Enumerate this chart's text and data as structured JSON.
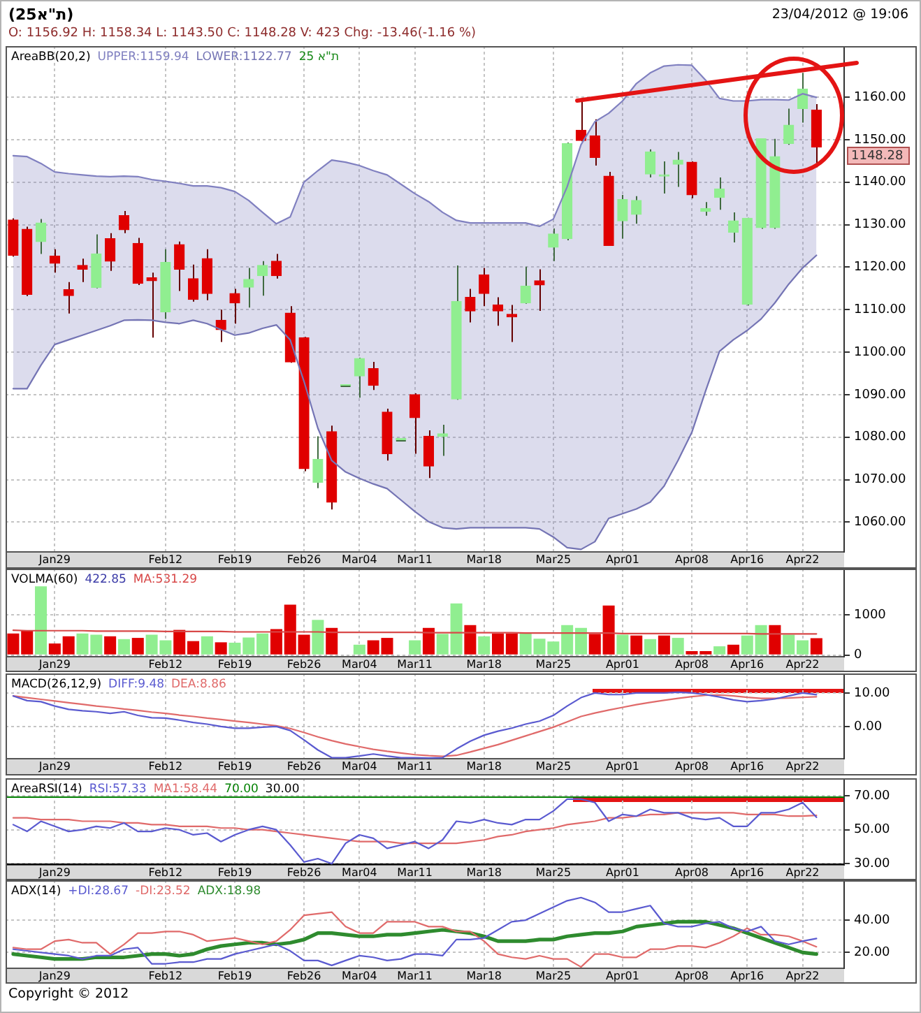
{
  "chart_data": [
    {
      "type": "candlestick",
      "title": "(ת\"א25)",
      "subtitle": "O: 1156.92 H: 1158.34 L: 1143.50 C: 1148.28 V: 423 Chg: -13.46(-1.16 %)",
      "legend_title": "AreaBB(20,2)",
      "legend": "top left",
      "categories": [
        null,
        null,
        null,
        "Jan29",
        null,
        null,
        null,
        null,
        null,
        null,
        null,
        "Feb12",
        null,
        null,
        null,
        null,
        "Feb19",
        null,
        null,
        null,
        null,
        "Feb26",
        null,
        null,
        null,
        "Mar04",
        null,
        null,
        null,
        "Mar11",
        null,
        null,
        null,
        null,
        "Mar18",
        null,
        null,
        null,
        null,
        "Mar25",
        null,
        null,
        null,
        null,
        "Apr01",
        null,
        null,
        null,
        null,
        "Apr08",
        null,
        null,
        null,
        "Apr16",
        null,
        null,
        null,
        "Apr22",
        null
      ],
      "series": [
        {
          "name": "UPPER:1159.94",
          "type": "area",
          "color": "#8080c0",
          "values": [
            1146.2,
            1146.0,
            1144.4,
            1142.4,
            1142.0,
            1141.7,
            1141.4,
            1141.3,
            1141.4,
            1141.3,
            1140.6,
            1140.2,
            1139.7,
            1139.1,
            1139.1,
            1138.7,
            1137.8,
            1135.7,
            1132.9,
            1130.2,
            1131.8,
            1140.0,
            1142.7,
            1145.2,
            1144.7,
            1143.9,
            1142.7,
            1141.7,
            1139.5,
            1137.3,
            1135.4,
            1132.9,
            1131.0,
            1130.4,
            1130.4,
            1130.4,
            1130.4,
            1130.4,
            1129.6,
            1131.3,
            1138.9,
            1148.8,
            1154.2,
            1156.2,
            1159.1,
            1163.2,
            1165.7,
            1167.3,
            1167.6,
            1167.5,
            1164.0,
            1159.7,
            1159.1,
            1159.1,
            1159.4,
            1159.4,
            1159.3,
            1160.8,
            1159.94
          ]
        },
        {
          "name": "LOWER:1122.77",
          "type": "line",
          "color": "#7474b4",
          "values": [
            1091.4,
            1091.4,
            1096.9,
            1101.8,
            1102.9,
            1104.0,
            1105.1,
            1106.2,
            1107.5,
            1107.6,
            1107.5,
            1107.0,
            1106.7,
            1107.5,
            1106.7,
            1105.3,
            1104.0,
            1104.5,
            1105.6,
            1106.4,
            1102.9,
            1093.1,
            1082.1,
            1074.5,
            1071.8,
            1070.3,
            1069.0,
            1067.9,
            1065.2,
            1062.5,
            1060.1,
            1058.7,
            1058.4,
            1058.7,
            1058.7,
            1058.7,
            1058.7,
            1058.7,
            1058.4,
            1056.5,
            1054.0,
            1053.6,
            1055.4,
            1060.9,
            1062.0,
            1063.1,
            1064.7,
            1068.5,
            1074.5,
            1081.1,
            1090.9,
            1100.2,
            1102.9,
            1105.1,
            1107.8,
            1111.6,
            1116.0,
            1119.8,
            1122.77
          ]
        },
        {
          "colors": [
            "#e00000",
            "#e00000",
            "#90ee90",
            "#e00000",
            "#e00000",
            "#e00000",
            "#90ee90",
            "#e00000",
            "#e00000",
            "#e00000",
            "#e00000",
            "#90ee90",
            "#e00000",
            "#e00000",
            "#e00000",
            "#e00000",
            "#e00000",
            "#90ee90",
            "#90ee90",
            "#e00000",
            "#e00000",
            "#e00000",
            "#90ee90",
            "#e00000",
            "#90ee90",
            "#90ee90",
            "#e00000",
            "#e00000",
            "#90ee90",
            "#e00000",
            "#e00000",
            "#90ee90",
            "#90ee90",
            "#e00000",
            "#e00000",
            "#e00000",
            "#e00000",
            "#90ee90",
            "#e00000",
            "#90ee90",
            "#90ee90",
            "#e00000",
            "#e00000",
            "#e00000",
            "#90ee90",
            "#90ee90",
            "#90ee90",
            "#90ee90",
            "#90ee90",
            "#e00000",
            "#90ee90",
            "#90ee90",
            "#90ee90",
            "#90ee90",
            "#90ee90",
            "#90ee90",
            "#90ee90",
            "#90ee90",
            "#e00000"
          ],
          "ohlc": [
            [
              1131.1,
              1131.5,
              1122.5,
              1122.8
            ],
            [
              1128.9,
              1129.5,
              1113.2,
              1113.6
            ],
            [
              1126.0,
              1131.3,
              1123.1,
              1130.4
            ],
            [
              1122.6,
              1124.2,
              1118.7,
              1120.9
            ],
            [
              1114.7,
              1116.5,
              1109.1,
              1113.3
            ],
            [
              1120.4,
              1122.0,
              1116.5,
              1119.5
            ],
            [
              1115.2,
              1127.7,
              1115.0,
              1123.1
            ],
            [
              1126.7,
              1128.0,
              1119.1,
              1121.4
            ],
            [
              1132.1,
              1133.2,
              1128.0,
              1128.8
            ],
            [
              1125.6,
              1126.9,
              1115.8,
              1116.2
            ],
            [
              1117.5,
              1118.7,
              1103.4,
              1116.8
            ],
            [
              1109.5,
              1124.2,
              1107.8,
              1121.1
            ],
            [
              1125.3,
              1126.0,
              1114.4,
              1119.5
            ],
            [
              1117.3,
              1120.6,
              1111.9,
              1112.4
            ],
            [
              1122.0,
              1124.2,
              1112.2,
              1113.8
            ],
            [
              1107.5,
              1110.0,
              1102.4,
              1105.3
            ],
            [
              1113.8,
              1114.9,
              1106.7,
              1111.6
            ],
            [
              1115.3,
              1119.8,
              1110.5,
              1117.1
            ],
            [
              1118.0,
              1121.4,
              1113.3,
              1120.4
            ],
            [
              1121.4,
              1123.1,
              1117.3,
              1118.0
            ],
            [
              1109.2,
              1110.8,
              1097.5,
              1097.7
            ],
            [
              1103.4,
              1103.6,
              1072.0,
              1072.6
            ],
            [
              1069.4,
              1080.2,
              1068.0,
              1074.8
            ],
            [
              1081.3,
              1082.7,
              1063.0,
              1064.7
            ],
            [
              1092.0,
              1092.0,
              1092.0,
              1092.0
            ],
            [
              1094.4,
              1098.7,
              1089.3,
              1098.5
            ],
            [
              1096.1,
              1097.7,
              1091.1,
              1092.2
            ],
            [
              1085.9,
              1086.7,
              1074.5,
              1076.1
            ],
            [
              1079.4,
              1079.4,
              1079.4,
              1079.4
            ],
            [
              1090.0,
              1090.3,
              1076.1,
              1084.6
            ],
            [
              1080.2,
              1081.6,
              1070.4,
              1073.2
            ],
            [
              1080.2,
              1082.9,
              1075.6,
              1080.8
            ],
            [
              1089.0,
              1120.4,
              1088.8,
              1111.9
            ],
            [
              1112.9,
              1114.9,
              1107.0,
              1109.7
            ],
            [
              1118.2,
              1119.8,
              1110.8,
              1113.8
            ],
            [
              1111.1,
              1112.9,
              1106.2,
              1109.7
            ],
            [
              1108.9,
              1111.1,
              1102.4,
              1108.3
            ],
            [
              1111.6,
              1120.1,
              1111.4,
              1115.5
            ],
            [
              1116.8,
              1119.5,
              1109.7,
              1115.8
            ],
            [
              1124.7,
              1129.1,
              1121.4,
              1127.8
            ],
            [
              1126.7,
              1149.3,
              1126.3,
              1149.1
            ],
            [
              1152.2,
              1159.1,
              1149.6,
              1149.8
            ],
            [
              1150.9,
              1154.8,
              1143.9,
              1145.8
            ],
            [
              1141.4,
              1142.4,
              1125.0,
              1125.1
            ],
            [
              1130.9,
              1137.0,
              1126.7,
              1135.9
            ],
            [
              1132.4,
              1136.7,
              1130.2,
              1135.7
            ],
            [
              1141.9,
              1147.7,
              1141.1,
              1147.1
            ],
            [
              1141.4,
              1144.9,
              1137.3,
              1141.5
            ],
            [
              1144.2,
              1147.1,
              1138.9,
              1145.2
            ],
            [
              1144.7,
              1144.9,
              1136.2,
              1137.0
            ],
            [
              1133.1,
              1135.3,
              1132.1,
              1133.8
            ],
            [
              1136.4,
              1141.1,
              1133.5,
              1138.4
            ],
            [
              1128.2,
              1132.9,
              1125.8,
              1130.9
            ],
            [
              1111.3,
              1131.6,
              1111.0,
              1131.5
            ],
            [
              1129.3,
              1150.3,
              1129.0,
              1150.2
            ],
            [
              1129.3,
              1150.2,
              1129.0,
              1146.0
            ],
            [
              1149.1,
              1157.3,
              1148.8,
              1153.4
            ],
            [
              1157.3,
              1165.7,
              1154.0,
              1161.9
            ],
            [
              1156.92,
              1158.34,
              1143.5,
              1148.28
            ]
          ]
        }
      ],
      "ylim": [
        1053,
        1172
      ],
      "yticks": [
        {
          "value": 1060,
          "label": "1060.00"
        },
        {
          "value": 1070,
          "label": "1070.00"
        },
        {
          "value": 1080,
          "label": "1080.00"
        },
        {
          "value": 1090,
          "label": "1090.00"
        },
        {
          "value": 1100,
          "label": "1100.00"
        },
        {
          "value": 1110,
          "label": "1110.00"
        },
        {
          "value": 1120,
          "label": "1120.00"
        },
        {
          "value": 1130,
          "label": "1130.00"
        },
        {
          "value": 1140,
          "label": "1140.00"
        },
        {
          "value": 1150,
          "label": "1150.00"
        },
        {
          "value": 1160,
          "label": "1160.00"
        }
      ],
      "grid": true,
      "marker": "none",
      "annotations": [
        "23/04/2012 @ 19:06",
        "ת\"א 25",
        "1148.28"
      ]
    },
    {
      "type": "bar",
      "legend_title": "VOLMA(60) 422.85",
      "legend": "top left",
      "categories": [
        null,
        null,
        null,
        "Jan29",
        null,
        null,
        null,
        null,
        null,
        null,
        null,
        "Feb12",
        null,
        null,
        null,
        null,
        "Feb19",
        null,
        null,
        null,
        null,
        "Feb26",
        null,
        null,
        null,
        "Mar04",
        null,
        null,
        null,
        "Mar11",
        null,
        null,
        null,
        null,
        "Mar18",
        null,
        null,
        null,
        null,
        "Mar25",
        null,
        null,
        null,
        null,
        "Apr01",
        null,
        null,
        null,
        null,
        "Apr08",
        null,
        null,
        null,
        "Apr16",
        null,
        null,
        null,
        "Apr22",
        null
      ],
      "series": [
        {
          "colors": [
            "#e00000",
            "#e00000",
            "#90ee90",
            "#e00000",
            "#e00000",
            "#90ee90",
            "#90ee90",
            "#e00000",
            "#90ee90",
            "#e00000",
            "#90ee90",
            "#90ee90",
            "#e00000",
            "#e00000",
            "#90ee90",
            "#e00000",
            "#90ee90",
            "#90ee90",
            "#90ee90",
            "#e00000",
            "#e00000",
            "#e00000",
            "#90ee90",
            "#e00000",
            "#90ee90",
            "#90ee90",
            "#e00000",
            "#e00000",
            "#90ee90",
            "#90ee90",
            "#e00000",
            "#90ee90",
            "#90ee90",
            "#e00000",
            "#90ee90",
            "#e00000",
            "#e00000",
            "#90ee90",
            "#90ee90",
            "#90ee90",
            "#90ee90",
            "#90ee90",
            "#e00000",
            "#e00000",
            "#90ee90",
            "#e00000",
            "#90ee90",
            "#e00000",
            "#90ee90",
            "#e00000",
            "#e00000",
            "#90ee90",
            "#e00000",
            "#90ee90",
            "#90ee90",
            "#e00000",
            "#90ee90",
            "#90ee90",
            "#e00000"
          ],
          "values": [
            540,
            620,
            1720,
            290,
            470,
            540,
            510,
            470,
            400,
            430,
            510,
            370,
            630,
            350,
            470,
            320,
            310,
            440,
            540,
            650,
            1260,
            510,
            880,
            680,
            0,
            260,
            370,
            430,
            0,
            370,
            680,
            530,
            1290,
            750,
            470,
            540,
            540,
            560,
            410,
            340,
            750,
            680,
            530,
            1240,
            510,
            490,
            400,
            490,
            430,
            100,
            100,
            220,
            260,
            490,
            750,
            750,
            510,
            370,
            423
          ]
        },
        {
          "name": "MA:531.29",
          "type": "line",
          "color": "#d84848",
          "values": [
            620,
            610,
            610,
            610,
            610,
            610,
            600,
            600,
            600,
            600,
            600,
            590,
            590,
            590,
            590,
            590,
            580,
            580,
            580,
            580,
            580,
            580,
            580,
            570,
            570,
            570,
            570,
            570,
            570,
            570,
            560,
            560,
            560,
            560,
            560,
            560,
            560,
            550,
            550,
            550,
            550,
            550,
            550,
            550,
            540,
            540,
            540,
            540,
            540,
            540,
            540,
            540,
            540,
            540,
            530,
            530,
            530,
            530,
            531.29
          ]
        }
      ],
      "ylim": [
        -40,
        2160
      ],
      "yticks": [
        0,
        1000
      ],
      "grid": true,
      "marker": "none"
    },
    {
      "type": "line",
      "legend_title": "MACD(26,12,9)",
      "legend": "top left",
      "categories": [
        null,
        null,
        null,
        "Jan29",
        null,
        null,
        null,
        null,
        null,
        null,
        null,
        "Feb12",
        null,
        null,
        null,
        null,
        "Feb19",
        null,
        null,
        null,
        null,
        "Feb26",
        null,
        null,
        null,
        "Mar04",
        null,
        null,
        null,
        "Mar11",
        null,
        null,
        null,
        null,
        "Mar18",
        null,
        null,
        null,
        null,
        "Mar25",
        null,
        null,
        null,
        null,
        "Apr01",
        null,
        null,
        null,
        null,
        "Apr08",
        null,
        null,
        null,
        "Apr16",
        null,
        null,
        null,
        "Apr22",
        null
      ],
      "series": [
        {
          "name": "DIFF:9.48",
          "color": "#5a5ad0",
          "values": [
            9.1,
            7.7,
            7.4,
            6.1,
            5.1,
            4.7,
            4.4,
            3.9,
            4.4,
            3.3,
            2.6,
            2.5,
            1.9,
            1.2,
            0.7,
            0.0,
            -0.5,
            -0.5,
            -0.2,
            0.0,
            -1.2,
            -4.0,
            -7.0,
            -9.3,
            -9.3,
            -8.8,
            -8.2,
            -8.8,
            -9.3,
            -9.3,
            -9.4,
            -9.3,
            -6.7,
            -4.4,
            -2.6,
            -1.4,
            -0.5,
            0.7,
            1.6,
            3.3,
            6.1,
            8.6,
            10.0,
            9.5,
            9.5,
            10.0,
            10.0,
            10.0,
            10.2,
            10.0,
            9.5,
            8.8,
            7.9,
            7.4,
            7.7,
            8.2,
            9.1,
            10.0,
            9.48
          ]
        },
        {
          "name": "DEA:8.86",
          "color": "#e06a6a",
          "values": [
            9.1,
            8.6,
            8.1,
            7.6,
            7.1,
            6.6,
            6.1,
            5.7,
            5.2,
            4.8,
            4.3,
            3.9,
            3.4,
            3.0,
            2.5,
            2.1,
            1.6,
            1.2,
            0.7,
            0.2,
            -0.6,
            -1.8,
            -3.1,
            -4.2,
            -5.2,
            -6.0,
            -6.8,
            -7.4,
            -7.9,
            -8.4,
            -8.7,
            -8.9,
            -8.6,
            -7.6,
            -6.5,
            -5.4,
            -4.1,
            -2.8,
            -1.5,
            -0.2,
            1.4,
            3.0,
            4.0,
            4.9,
            5.7,
            6.5,
            7.2,
            7.8,
            8.4,
            8.9,
            9.3,
            9.4,
            9.1,
            8.7,
            8.4,
            8.4,
            8.5,
            8.7,
            8.86
          ]
        }
      ],
      "ylim": [
        -9.6,
        15.8
      ],
      "yticks": [
        {
          "value": 0,
          "label": "0.00"
        },
        {
          "value": 10,
          "label": "10.00"
        }
      ],
      "grid": true,
      "marker": "none"
    },
    {
      "type": "line",
      "legend_title": "AreaRSI(14)",
      "legend": "top left",
      "categories": [
        null,
        null,
        null,
        "Jan29",
        null,
        null,
        null,
        null,
        null,
        null,
        null,
        "Feb12",
        null,
        null,
        null,
        null,
        "Feb19",
        null,
        null,
        null,
        null,
        "Feb26",
        null,
        null,
        null,
        "Mar04",
        null,
        null,
        null,
        "Mar11",
        null,
        null,
        null,
        null,
        "Mar18",
        null,
        null,
        null,
        null,
        "Mar25",
        null,
        null,
        null,
        null,
        "Apr01",
        null,
        null,
        null,
        null,
        "Apr08",
        null,
        null,
        null,
        "Apr16",
        null,
        null,
        null,
        "Apr22",
        null
      ],
      "series": [
        {
          "name": "RSI:57.33",
          "color": "#5a5ad0",
          "values": [
            53,
            49,
            55,
            52,
            49,
            50,
            52,
            51,
            54,
            49,
            49,
            51,
            50,
            47,
            48,
            43,
            47,
            50,
            52,
            50,
            41,
            31,
            33,
            30,
            42,
            47,
            45,
            39,
            41,
            43,
            39,
            44,
            55,
            54,
            56,
            54,
            53,
            56,
            56,
            61,
            68,
            68,
            66,
            55,
            59,
            58,
            62,
            60,
            60,
            57,
            56,
            57,
            52,
            52,
            60,
            60,
            62,
            66,
            57.33
          ]
        },
        {
          "name": "MA1:58.44",
          "color": "#e06a6a",
          "values": [
            57,
            57,
            56,
            56,
            56,
            55,
            55,
            55,
            54,
            54,
            53,
            53,
            52,
            52,
            52,
            51,
            51,
            50,
            50,
            49,
            48,
            47,
            46,
            45,
            44,
            43,
            43,
            43,
            42,
            42,
            42,
            42,
            42,
            43,
            44,
            46,
            47,
            49,
            50,
            51,
            53,
            54,
            55,
            57,
            57,
            58,
            59,
            59,
            60,
            60,
            60,
            60,
            60,
            59,
            59,
            59,
            58,
            58,
            58.44
          ]
        }
      ],
      "ylim": [
        29.3,
        80.3
      ],
      "yticks": [
        {
          "value": 30,
          "label": "30.00"
        },
        {
          "value": 50,
          "label": "50.00"
        },
        {
          "value": 70,
          "label": "70.00"
        }
      ],
      "ref_lines": [
        {
          "axis": "y",
          "value": 70,
          "label": "70.00",
          "color": "#008000"
        },
        {
          "axis": "y",
          "value": 30,
          "label": "30.00",
          "color": "#000000"
        }
      ],
      "grid": true,
      "marker": "none"
    },
    {
      "type": "line",
      "legend_title": "ADX(14)",
      "legend": "top left",
      "categories": [
        null,
        null,
        null,
        "Jan29",
        null,
        null,
        null,
        null,
        null,
        null,
        null,
        "Feb12",
        null,
        null,
        null,
        null,
        "Feb19",
        null,
        null,
        null,
        null,
        "Feb26",
        null,
        null,
        null,
        "Mar04",
        null,
        null,
        null,
        "Mar11",
        null,
        null,
        null,
        null,
        "Mar18",
        null,
        null,
        null,
        null,
        "Mar25",
        null,
        null,
        null,
        null,
        "Apr01",
        null,
        null,
        null,
        null,
        "Apr08",
        null,
        null,
        null,
        "Apr16",
        null,
        null,
        null,
        "Apr22",
        null
      ],
      "series": [
        {
          "name": "+DI:28.67",
          "color": "#5a5ad0",
          "values": [
            22,
            21,
            20,
            19,
            18,
            16,
            18,
            18,
            22,
            23,
            13,
            13,
            14,
            14,
            16,
            16,
            19,
            21,
            23,
            25,
            21,
            15,
            15,
            12,
            15,
            18,
            17,
            15,
            16,
            19,
            19,
            18,
            28,
            28,
            29,
            34,
            39,
            40,
            44,
            48,
            52,
            54,
            51,
            45,
            45,
            47,
            49,
            38,
            36,
            36,
            38,
            39,
            35,
            33,
            36,
            27,
            25,
            27,
            28.67
          ]
        },
        {
          "name": "-DI:23.52",
          "color": "#e06a6a",
          "values": [
            23,
            22,
            22,
            27,
            28,
            26,
            26,
            19,
            25,
            32,
            32,
            33,
            33,
            31,
            27,
            28,
            29,
            27,
            25,
            27,
            34,
            43,
            44,
            45,
            36,
            32,
            32,
            39,
            39,
            39,
            36,
            36,
            33,
            33,
            27,
            19,
            17,
            16,
            18,
            16,
            16,
            11,
            19,
            19,
            17,
            17,
            22,
            22,
            24,
            24,
            23,
            26,
            30,
            35,
            31,
            31,
            30,
            27,
            23.52
          ]
        },
        {
          "name": "ADX:18.98",
          "color": "#2e8b2e",
          "values": [
            19,
            18,
            17,
            16,
            16,
            16,
            17,
            17,
            17,
            18,
            19,
            19,
            18,
            19,
            22,
            24,
            25,
            26,
            26,
            25,
            26,
            28,
            32,
            32,
            31,
            30,
            30,
            31,
            31,
            32,
            33,
            34,
            33,
            32,
            30,
            27,
            27,
            27,
            28,
            28,
            30,
            31,
            32,
            32,
            33,
            36,
            37,
            38,
            39,
            39,
            39,
            37,
            35,
            32,
            29,
            26,
            23,
            20,
            18.98
          ]
        }
      ],
      "ylim": [
        10.2,
        64.7
      ],
      "yticks": [
        {
          "value": 20,
          "label": "20.00"
        },
        {
          "value": 40,
          "label": "40.00"
        }
      ],
      "grid": true,
      "marker": "none",
      "annotations": [
        "Copyright © 2012"
      ]
    }
  ]
}
